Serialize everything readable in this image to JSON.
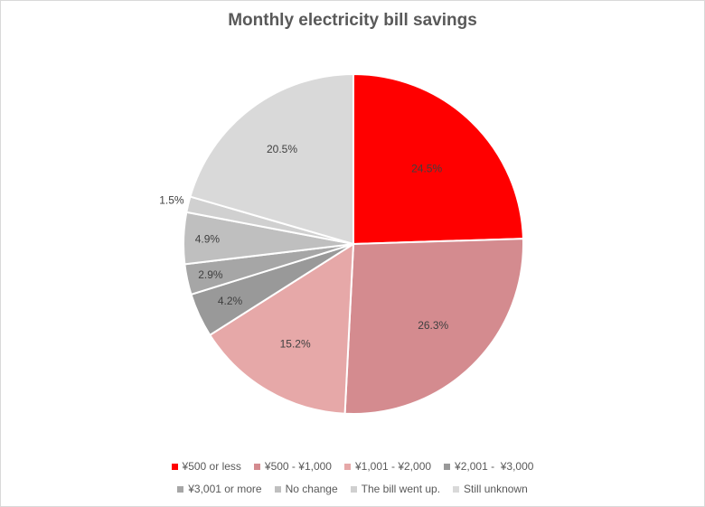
{
  "chart_data": {
    "type": "pie",
    "title": "Monthly electricity bill savings",
    "slices": [
      {
        "label": "¥500 or less",
        "value": 24.5,
        "display": "24.5%",
        "color": "#ff0000"
      },
      {
        "label": "¥500 - ¥1,000",
        "value": 26.3,
        "display": "26.3%",
        "color": "#d48b8f"
      },
      {
        "label": "¥1,001 - ¥2,000",
        "value": 15.2,
        "display": "15.2%",
        "color": "#e6a8a8"
      },
      {
        "label": "¥2,001 -  ¥3,000",
        "value": 4.2,
        "display": "4.2%",
        "color": "#999999"
      },
      {
        "label": "¥3,001 or more",
        "value": 2.9,
        "display": "2.9%",
        "color": "#a6a6a6"
      },
      {
        "label": "No change",
        "value": 4.9,
        "display": "4.9%",
        "color": "#bfbfbf"
      },
      {
        "label": "The bill went up.",
        "value": 1.5,
        "display": "1.5%",
        "color": "#d0d0d0"
      },
      {
        "label": "Still unknown",
        "value": 20.5,
        "display": "20.5%",
        "color": "#d9d9d9"
      }
    ],
    "legend_position": "bottom"
  }
}
